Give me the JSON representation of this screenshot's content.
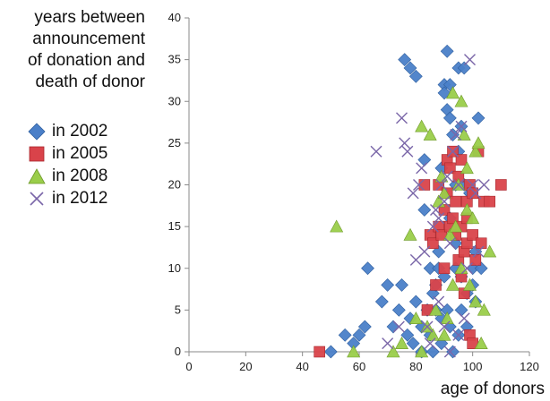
{
  "chart_data": {
    "type": "scatter",
    "ylabel_lines": [
      "years between",
      "announcement",
      "of donation and",
      "death of donor"
    ],
    "xlabel": "age of donors",
    "xlim": [
      0,
      120
    ],
    "ylim": [
      0,
      40
    ],
    "xticks": [
      0,
      20,
      40,
      60,
      80,
      100,
      120
    ],
    "yticks": [
      0,
      5,
      10,
      15,
      20,
      25,
      30,
      35,
      40
    ],
    "grid": false,
    "legend_position": "left",
    "series": [
      {
        "name": "in 2002",
        "marker": "diamond",
        "color": "#4a7fc8",
        "points": [
          [
            50,
            0
          ],
          [
            55,
            2
          ],
          [
            58,
            1
          ],
          [
            60,
            2
          ],
          [
            62,
            3
          ],
          [
            63,
            10
          ],
          [
            68,
            6
          ],
          [
            70,
            8
          ],
          [
            72,
            3
          ],
          [
            74,
            5
          ],
          [
            75,
            8
          ],
          [
            76,
            35
          ],
          [
            77,
            2
          ],
          [
            78,
            34
          ],
          [
            78,
            4
          ],
          [
            79,
            1
          ],
          [
            80,
            33
          ],
          [
            80,
            6
          ],
          [
            82,
            3
          ],
          [
            82,
            0
          ],
          [
            83,
            23
          ],
          [
            83,
            17
          ],
          [
            84,
            5
          ],
          [
            85,
            2
          ],
          [
            85,
            10
          ],
          [
            86,
            7
          ],
          [
            86,
            0
          ],
          [
            87,
            5
          ],
          [
            87,
            8
          ],
          [
            88,
            10
          ],
          [
            88,
            12
          ],
          [
            89,
            1
          ],
          [
            89,
            22
          ],
          [
            89,
            4
          ],
          [
            90,
            32
          ],
          [
            90,
            31
          ],
          [
            90,
            9
          ],
          [
            91,
            36
          ],
          [
            91,
            29
          ],
          [
            91,
            5
          ],
          [
            92,
            28
          ],
          [
            92,
            32
          ],
          [
            92,
            3
          ],
          [
            92,
            16
          ],
          [
            93,
            26
          ],
          [
            93,
            0
          ],
          [
            94,
            10
          ],
          [
            94,
            13
          ],
          [
            95,
            34
          ],
          [
            95,
            24
          ],
          [
            95,
            2
          ],
          [
            96,
            9
          ],
          [
            96,
            5
          ],
          [
            97,
            34
          ],
          [
            97,
            20
          ],
          [
            98,
            7
          ],
          [
            98,
            3
          ],
          [
            99,
            19
          ],
          [
            100,
            10
          ],
          [
            100,
            8
          ],
          [
            101,
            12
          ],
          [
            101,
            6
          ],
          [
            102,
            28
          ],
          [
            103,
            10
          ],
          [
            96,
            27
          ],
          [
            94,
            20
          ]
        ]
      },
      {
        "name": "in 2005",
        "marker": "square",
        "color": "#d9434a",
        "points": [
          [
            46,
            0
          ],
          [
            83,
            20
          ],
          [
            84,
            5
          ],
          [
            85,
            14
          ],
          [
            86,
            13
          ],
          [
            87,
            8
          ],
          [
            88,
            15
          ],
          [
            88,
            20
          ],
          [
            89,
            14
          ],
          [
            90,
            17
          ],
          [
            90,
            10
          ],
          [
            91,
            19
          ],
          [
            91,
            23
          ],
          [
            92,
            15
          ],
          [
            92,
            22
          ],
          [
            93,
            16
          ],
          [
            93,
            24
          ],
          [
            94,
            14
          ],
          [
            94,
            18
          ],
          [
            95,
            11
          ],
          [
            95,
            21
          ],
          [
            96,
            15
          ],
          [
            96,
            23
          ],
          [
            97,
            7
          ],
          [
            97,
            12
          ],
          [
            98,
            13
          ],
          [
            98,
            18
          ],
          [
            99,
            2
          ],
          [
            99,
            20
          ],
          [
            100,
            14
          ],
          [
            100,
            19
          ],
          [
            101,
            11
          ],
          [
            102,
            24
          ],
          [
            103,
            13
          ],
          [
            104,
            18
          ],
          [
            106,
            18
          ],
          [
            110,
            20
          ],
          [
            98,
            16
          ],
          [
            96,
            9
          ],
          [
            100,
            1
          ]
        ]
      },
      {
        "name": "in 2008",
        "marker": "triangle",
        "color": "#9acd4a",
        "points": [
          [
            52,
            15
          ],
          [
            58,
            0
          ],
          [
            72,
            0
          ],
          [
            75,
            1
          ],
          [
            78,
            14
          ],
          [
            80,
            4
          ],
          [
            82,
            27
          ],
          [
            84,
            3
          ],
          [
            85,
            26
          ],
          [
            86,
            2
          ],
          [
            87,
            5
          ],
          [
            88,
            18
          ],
          [
            89,
            21
          ],
          [
            90,
            19
          ],
          [
            90,
            2
          ],
          [
            91,
            4
          ],
          [
            92,
            14
          ],
          [
            93,
            31
          ],
          [
            93,
            8
          ],
          [
            94,
            15
          ],
          [
            95,
            20
          ],
          [
            96,
            30
          ],
          [
            96,
            10
          ],
          [
            97,
            26
          ],
          [
            98,
            22
          ],
          [
            98,
            17
          ],
          [
            99,
            8
          ],
          [
            100,
            16
          ],
          [
            101,
            24
          ],
          [
            101,
            6
          ],
          [
            102,
            25
          ],
          [
            103,
            1
          ],
          [
            104,
            5
          ],
          [
            106,
            12
          ],
          [
            82,
            0
          ]
        ]
      },
      {
        "name": "in 2012",
        "marker": "cross",
        "color": "#7a66a8",
        "points": [
          [
            66,
            24
          ],
          [
            70,
            1
          ],
          [
            74,
            3
          ],
          [
            75,
            28
          ],
          [
            76,
            25
          ],
          [
            77,
            24
          ],
          [
            79,
            19
          ],
          [
            80,
            11
          ],
          [
            81,
            20
          ],
          [
            82,
            22
          ],
          [
            83,
            12
          ],
          [
            84,
            3
          ],
          [
            85,
            1
          ],
          [
            86,
            15
          ],
          [
            87,
            17
          ],
          [
            88,
            16
          ],
          [
            89,
            20
          ],
          [
            90,
            18
          ],
          [
            90,
            3
          ],
          [
            91,
            21
          ],
          [
            92,
            13
          ],
          [
            93,
            24
          ],
          [
            94,
            26
          ],
          [
            95,
            20
          ],
          [
            96,
            27
          ],
          [
            97,
            4
          ],
          [
            98,
            10
          ],
          [
            99,
            35
          ],
          [
            100,
            20
          ],
          [
            101,
            19
          ],
          [
            102,
            12
          ],
          [
            104,
            20
          ],
          [
            95,
            2
          ],
          [
            88,
            6
          ],
          [
            92,
            0
          ]
        ]
      }
    ]
  }
}
